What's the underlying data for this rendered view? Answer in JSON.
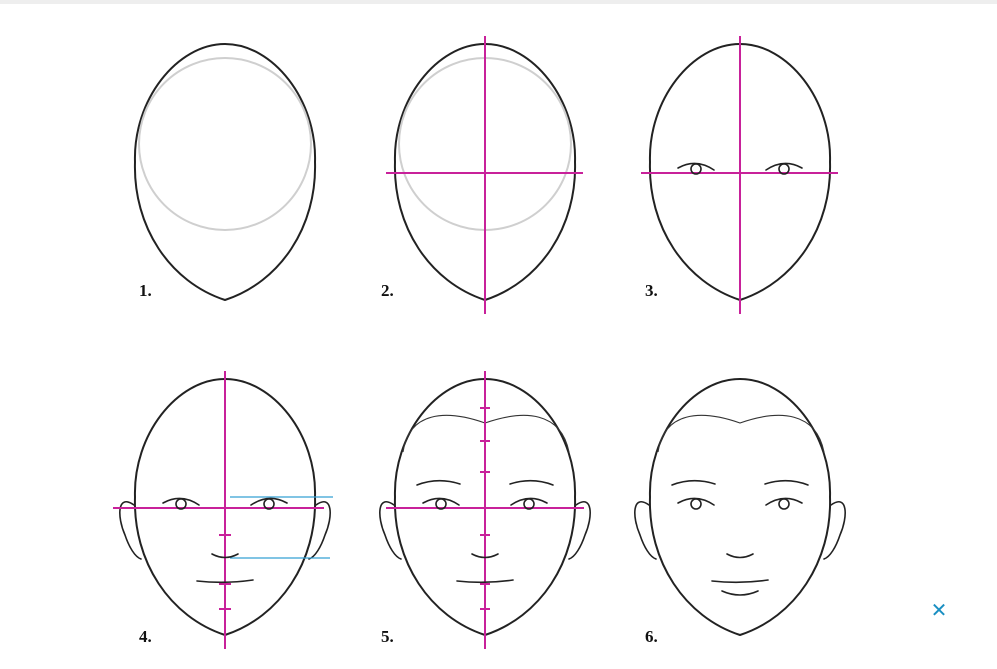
{
  "steps": [
    {
      "label": "1."
    },
    {
      "label": "2."
    },
    {
      "label": "3."
    },
    {
      "label": "4."
    },
    {
      "label": "5."
    },
    {
      "label": "6."
    }
  ],
  "colors": {
    "guide": "#c8219a",
    "measure": "#35a0d4",
    "outline": "#222222",
    "close": "#1a8fc2"
  },
  "close_icon": "close-icon",
  "close_glyph": "✕"
}
